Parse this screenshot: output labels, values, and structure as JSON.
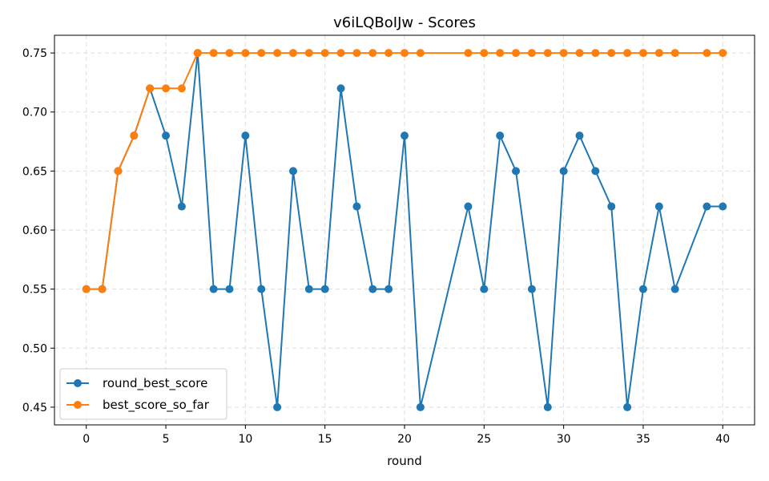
{
  "chart_data": {
    "type": "line",
    "title": "v6iLQBoIJw - Scores",
    "xlabel": "round",
    "ylabel": "",
    "xlim": [
      -2,
      42
    ],
    "ylim": [
      0.435,
      0.765
    ],
    "x_ticks": [
      0,
      5,
      10,
      15,
      20,
      25,
      30,
      35,
      40
    ],
    "y_ticks": [
      0.45,
      0.5,
      0.55,
      0.6,
      0.65,
      0.7,
      0.75
    ],
    "x_tick_labels": [
      "0",
      "5",
      "10",
      "15",
      "20",
      "25",
      "30",
      "35",
      "40"
    ],
    "y_tick_labels": [
      "0.45",
      "0.50",
      "0.55",
      "0.60",
      "0.65",
      "0.70",
      "0.75"
    ],
    "grid": true,
    "legend_position": "bottom-left",
    "series": [
      {
        "name": "round_best_score",
        "color": "#1f77b4",
        "x": [
          0,
          1,
          2,
          3,
          4,
          5,
          6,
          7,
          8,
          9,
          10,
          11,
          12,
          13,
          14,
          15,
          16,
          17,
          18,
          19,
          20,
          21,
          24,
          25,
          26,
          27,
          28,
          29,
          30,
          31,
          32,
          33,
          34,
          35,
          36,
          37,
          39,
          40
        ],
        "y": [
          0.55,
          0.55,
          0.65,
          0.68,
          0.72,
          0.68,
          0.62,
          0.75,
          0.55,
          0.55,
          0.68,
          0.55,
          0.45,
          0.65,
          0.55,
          0.55,
          0.72,
          0.62,
          0.55,
          0.55,
          0.68,
          0.45,
          0.62,
          0.55,
          0.68,
          0.65,
          0.55,
          0.45,
          0.65,
          0.68,
          0.65,
          0.62,
          0.45,
          0.55,
          0.62,
          0.55,
          0.62,
          0.62
        ]
      },
      {
        "name": "best_score_so_far",
        "color": "#ff7f0e",
        "x": [
          0,
          1,
          2,
          3,
          4,
          5,
          6,
          7,
          8,
          9,
          10,
          11,
          12,
          13,
          14,
          15,
          16,
          17,
          18,
          19,
          20,
          21,
          24,
          25,
          26,
          27,
          28,
          29,
          30,
          31,
          32,
          33,
          34,
          35,
          36,
          37,
          39,
          40
        ],
        "y": [
          0.55,
          0.55,
          0.65,
          0.68,
          0.72,
          0.72,
          0.72,
          0.75,
          0.75,
          0.75,
          0.75,
          0.75,
          0.75,
          0.75,
          0.75,
          0.75,
          0.75,
          0.75,
          0.75,
          0.75,
          0.75,
          0.75,
          0.75,
          0.75,
          0.75,
          0.75,
          0.75,
          0.75,
          0.75,
          0.75,
          0.75,
          0.75,
          0.75,
          0.75,
          0.75,
          0.75,
          0.75,
          0.75
        ]
      }
    ]
  }
}
